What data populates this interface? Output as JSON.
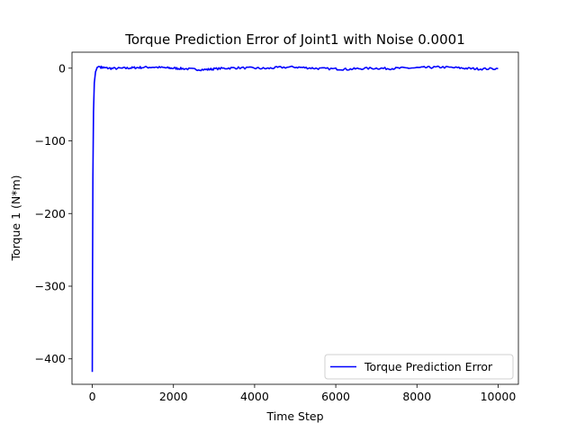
{
  "chart_data": {
    "type": "line",
    "title": "Torque Prediction Error of Joint1 with Noise 0.0001",
    "xlabel": "Time Step",
    "ylabel": "Torque 1 (N*m)",
    "xlim": [
      -500,
      10500
    ],
    "ylim": [
      -435,
      22
    ],
    "xticks": [
      0,
      2000,
      4000,
      6000,
      8000,
      10000
    ],
    "xtick_labels": [
      "0",
      "2000",
      "4000",
      "6000",
      "8000",
      "10000"
    ],
    "yticks": [
      0,
      -100,
      -200,
      -300,
      -400
    ],
    "ytick_labels": [
      "0",
      "−100",
      "−200",
      "−300",
      "−400"
    ],
    "grid": false,
    "legend_position": "lower-right",
    "series": [
      {
        "name": "Torque Prediction Error",
        "color": "#0000ff",
        "x": [
          0,
          5,
          15,
          30,
          50,
          80,
          120,
          160,
          200,
          300,
          500,
          800,
          1000,
          1200,
          1500,
          1800,
          2000,
          2200,
          2500,
          2800,
          3000,
          3300,
          3600,
          4000,
          4300,
          4600,
          5000,
          5300,
          5600,
          6000,
          6300,
          6600,
          7000,
          7300,
          7600,
          8000,
          8300,
          8600,
          9000,
          9300,
          9600,
          10000
        ],
        "y": [
          -418,
          -300,
          -150,
          -60,
          -20,
          -5,
          1,
          2.5,
          1.5,
          0.5,
          -0.5,
          0,
          0.5,
          1,
          1.5,
          0.5,
          0,
          -0.5,
          -1.5,
          -2,
          -1,
          0,
          0.5,
          0,
          -0.5,
          1,
          1.5,
          0.5,
          -0.5,
          -1,
          -1.5,
          -0.5,
          0,
          -0.5,
          0,
          0.5,
          1,
          1.5,
          0.5,
          -0.5,
          -1,
          -0.5
        ]
      }
    ]
  }
}
